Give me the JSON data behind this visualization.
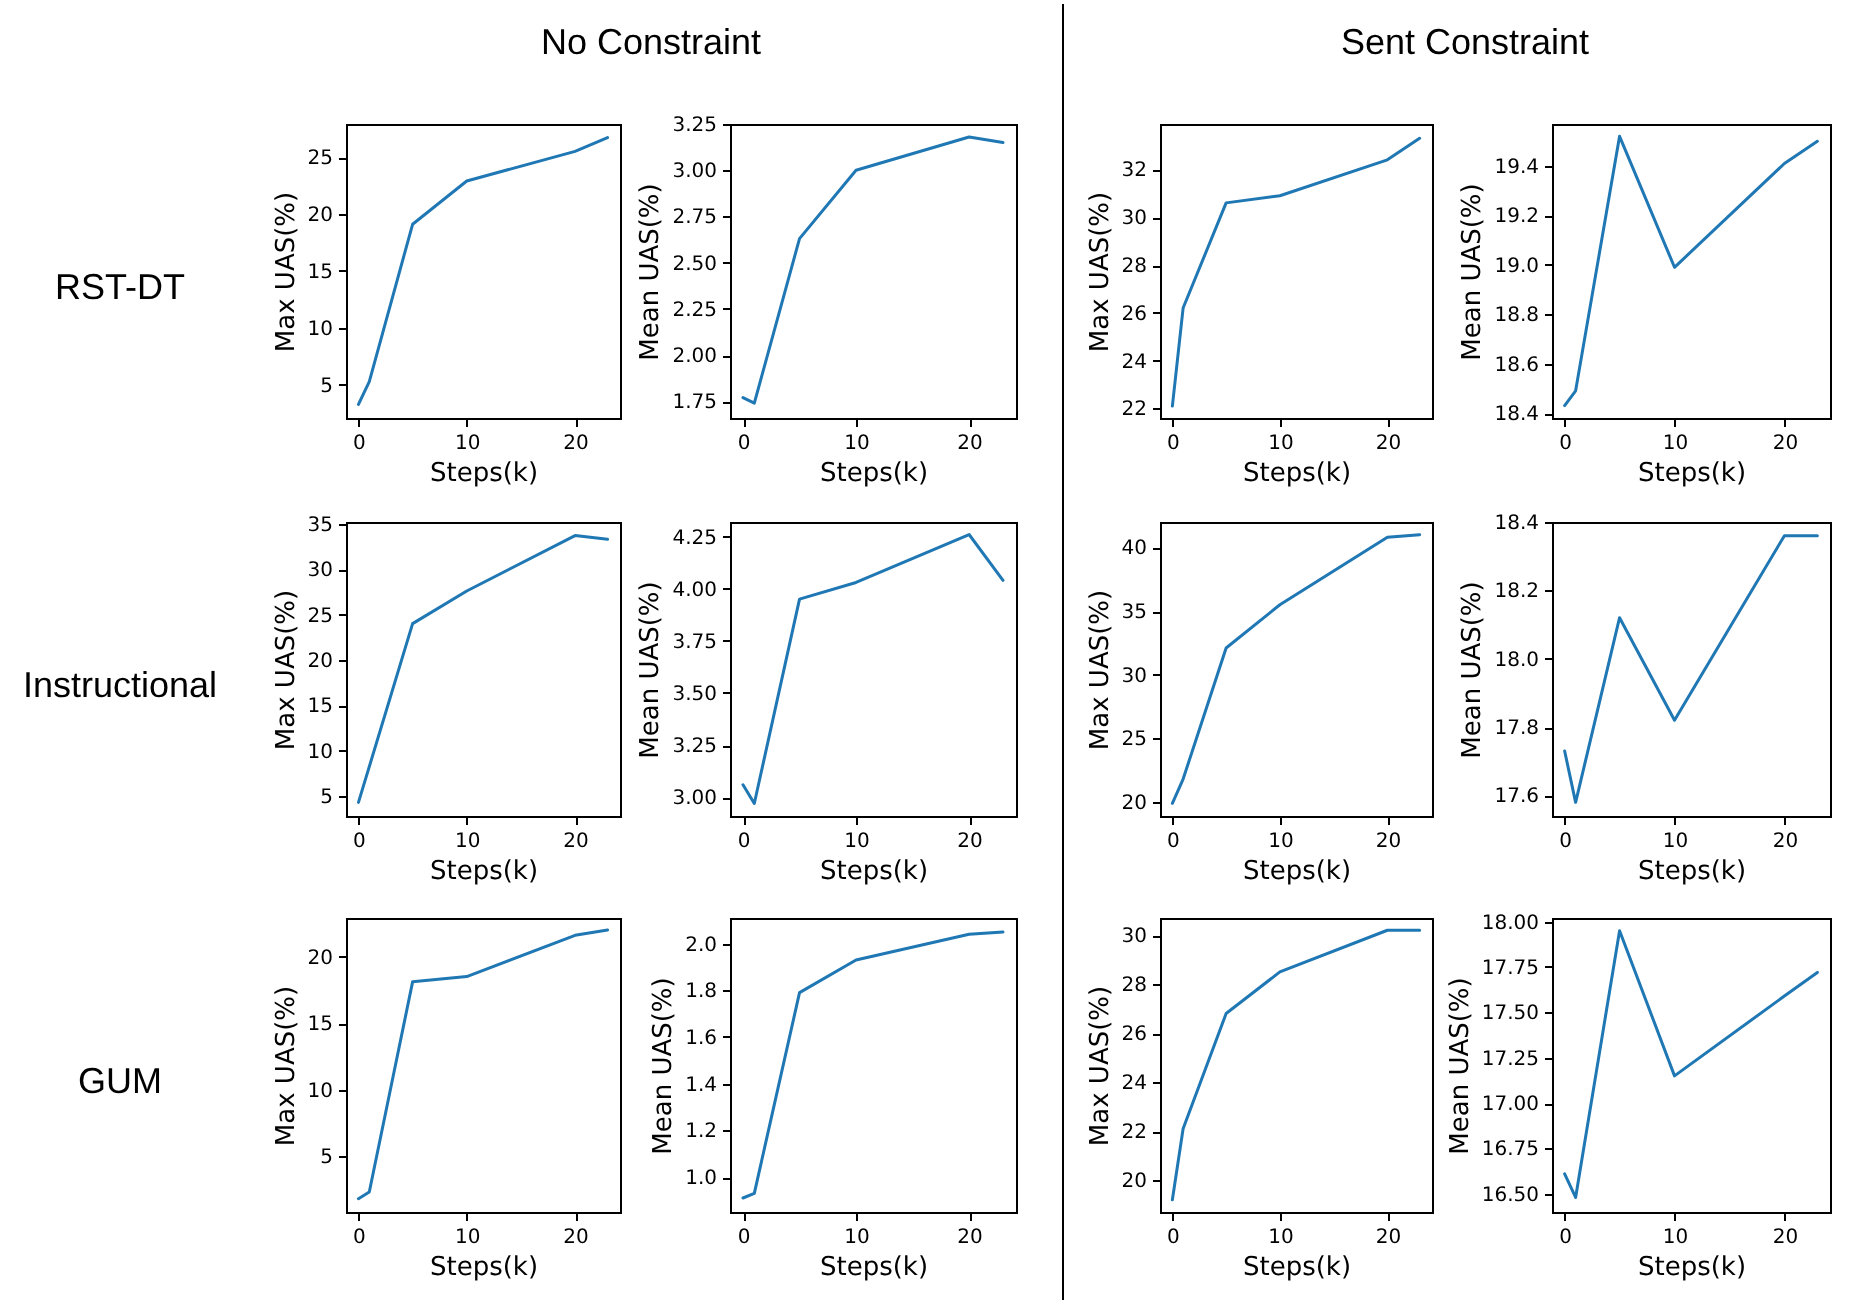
{
  "chart_data": [
    {
      "type": "line",
      "title": "No Constraint",
      "annotations": [
        "RST-DT"
      ],
      "xlabel": "Steps(k)",
      "ylabel": "Max UAS(%)",
      "x": [
        0,
        1,
        5,
        10,
        20,
        23
      ],
      "xlim": [
        -1.15,
        24.15
      ],
      "xticks": [
        0,
        10,
        20
      ],
      "ylim": [
        2.1,
        27.9
      ],
      "yticks": [
        5,
        10,
        15,
        20,
        25
      ],
      "series": [
        {
          "color": "#1f77b4",
          "values": [
            3.3,
            5.3,
            19.1,
            22.9,
            25.5,
            26.7
          ]
        }
      ]
    },
    {
      "type": "line",
      "xlabel": "Steps(k)",
      "ylabel": "Mean UAS(%)",
      "x": [
        0,
        1,
        5,
        10,
        20,
        23
      ],
      "xlim": [
        -1.15,
        24.15
      ],
      "xticks": [
        0,
        10,
        20
      ],
      "ylim": [
        1.66,
        3.25
      ],
      "yticks": [
        1.75,
        {
          "value": 2,
          "label": "2.00"
        },
        2.25,
        {
          "value": 2.5,
          "label": "2.50"
        },
        2.75,
        {
          "value": 3,
          "label": "3.00"
        },
        3.25
      ],
      "series": [
        {
          "color": "#1f77b4",
          "values": [
            1.77,
            1.74,
            2.63,
            3.0,
            3.18,
            3.15
          ]
        }
      ]
    },
    {
      "type": "line",
      "title": "Sent Constraint",
      "xlabel": "Steps(k)",
      "ylabel": "Max UAS(%)",
      "x": [
        0,
        1,
        5,
        10,
        20,
        23
      ],
      "xlim": [
        -1.15,
        24.15
      ],
      "xticks": [
        0,
        10,
        20
      ],
      "ylim": [
        21.6,
        33.9
      ],
      "yticks": [
        22,
        24,
        26,
        28,
        30,
        32
      ],
      "series": [
        {
          "color": "#1f77b4",
          "values": [
            22.1,
            26.2,
            30.6,
            30.9,
            32.4,
            33.3
          ]
        }
      ]
    },
    {
      "type": "line",
      "xlabel": "Steps(k)",
      "ylabel": "Mean UAS(%)",
      "x": [
        0,
        1,
        5,
        10,
        20,
        23
      ],
      "xlim": [
        -1.15,
        24.15
      ],
      "xticks": [
        0,
        10,
        20
      ],
      "ylim": [
        18.38,
        19.57
      ],
      "yticks": [
        18.4,
        18.6,
        18.8,
        {
          "value": 19,
          "label": "19.0"
        },
        19.2,
        19.4
      ],
      "series": [
        {
          "color": "#1f77b4",
          "values": [
            18.43,
            18.49,
            19.52,
            18.99,
            19.41,
            19.5
          ]
        }
      ]
    },
    {
      "type": "line",
      "annotations": [
        "Instructional"
      ],
      "xlabel": "Steps(k)",
      "ylabel": "Max UAS(%)",
      "x": [
        0,
        5,
        10,
        20,
        23
      ],
      "xlim": [
        -1.15,
        24.15
      ],
      "xticks": [
        0,
        10,
        20
      ],
      "ylim": [
        2.8,
        35.2
      ],
      "yticks": [
        5,
        10,
        15,
        20,
        25,
        30,
        35
      ],
      "series": [
        {
          "color": "#1f77b4",
          "values": [
            4.3,
            24.0,
            27.6,
            33.7,
            33.3
          ]
        }
      ]
    },
    {
      "type": "line",
      "xlabel": "Steps(k)",
      "ylabel": "Mean UAS(%)",
      "x": [
        0,
        1,
        5,
        10,
        20,
        23
      ],
      "xlim": [
        -1.15,
        24.15
      ],
      "xticks": [
        0,
        10,
        20
      ],
      "ylim": [
        2.91,
        4.32
      ],
      "yticks": [
        {
          "value": 3,
          "label": "3.00"
        },
        3.25,
        {
          "value": 3.5,
          "label": "3.50"
        },
        3.75,
        {
          "value": 4,
          "label": "4.00"
        },
        4.25
      ],
      "series": [
        {
          "color": "#1f77b4",
          "values": [
            3.06,
            2.97,
            3.95,
            4.03,
            4.26,
            4.04
          ]
        }
      ]
    },
    {
      "type": "line",
      "xlabel": "Steps(k)",
      "ylabel": "Max UAS(%)",
      "x": [
        0,
        1,
        5,
        10,
        20,
        23
      ],
      "xlim": [
        -1.15,
        24.15
      ],
      "xticks": [
        0,
        10,
        20
      ],
      "ylim": [
        18.9,
        42.0
      ],
      "yticks": [
        20,
        25,
        30,
        35,
        40
      ],
      "series": [
        {
          "color": "#1f77b4",
          "values": [
            19.9,
            21.8,
            32.1,
            35.5,
            40.8,
            41.0
          ]
        }
      ]
    },
    {
      "type": "line",
      "xlabel": "Steps(k)",
      "ylabel": "Mean UAS(%)",
      "x": [
        0,
        1,
        5,
        10,
        20,
        23
      ],
      "xlim": [
        -1.15,
        24.15
      ],
      "xticks": [
        0,
        10,
        20
      ],
      "ylim": [
        17.54,
        18.4
      ],
      "yticks": [
        17.6,
        17.8,
        {
          "value": 18,
          "label": "18.0"
        },
        18.2,
        18.4
      ],
      "series": [
        {
          "color": "#1f77b4",
          "values": [
            17.73,
            17.58,
            18.12,
            17.82,
            18.36,
            18.36
          ]
        }
      ]
    },
    {
      "type": "line",
      "annotations": [
        "GUM"
      ],
      "xlabel": "Steps(k)",
      "ylabel": "Max UAS(%)",
      "x": [
        0,
        1,
        5,
        10,
        20,
        23
      ],
      "xlim": [
        -1.15,
        24.15
      ],
      "xticks": [
        0,
        10,
        20
      ],
      "ylim": [
        0.8,
        22.9
      ],
      "yticks": [
        5,
        10,
        15,
        20
      ],
      "series": [
        {
          "color": "#1f77b4",
          "values": [
            1.8,
            2.3,
            18.1,
            18.5,
            21.6,
            22.0
          ]
        }
      ]
    },
    {
      "type": "line",
      "xlabel": "Steps(k)",
      "ylabel": "Mean UAS(%)",
      "x": [
        0,
        1,
        5,
        10,
        20,
        23
      ],
      "xlim": [
        -1.15,
        24.15
      ],
      "xticks": [
        0,
        10,
        20
      ],
      "ylim": [
        0.85,
        2.11
      ],
      "yticks": [
        {
          "value": 1,
          "label": "1.0"
        },
        1.2,
        1.4,
        1.6,
        1.8,
        {
          "value": 2,
          "label": "2.0"
        }
      ],
      "series": [
        {
          "color": "#1f77b4",
          "values": [
            0.91,
            0.93,
            1.79,
            1.93,
            2.04,
            2.05
          ]
        }
      ]
    },
    {
      "type": "line",
      "xlabel": "Steps(k)",
      "ylabel": "Max UAS(%)",
      "x": [
        0,
        1,
        5,
        10,
        20,
        23
      ],
      "xlim": [
        -1.15,
        24.15
      ],
      "xticks": [
        0,
        10,
        20
      ],
      "ylim": [
        18.7,
        30.7
      ],
      "yticks": [
        20,
        22,
        24,
        26,
        28,
        30
      ],
      "series": [
        {
          "color": "#1f77b4",
          "values": [
            19.2,
            22.1,
            26.8,
            28.5,
            30.2,
            30.2
          ]
        }
      ]
    },
    {
      "type": "line",
      "xlabel": "Steps(k)",
      "ylabel": "Mean UAS(%)",
      "x": [
        0,
        1,
        5,
        10,
        20,
        23
      ],
      "xlim": [
        -1.15,
        24.15
      ],
      "xticks": [
        0,
        10,
        20
      ],
      "ylim": [
        16.4,
        18.02
      ],
      "yticks": [
        {
          "value": 16.5,
          "label": "16.50"
        },
        16.75,
        {
          "value": 17,
          "label": "17.00"
        },
        17.25,
        {
          "value": 17.5,
          "label": "17.50"
        },
        17.75,
        {
          "value": 18,
          "label": "18.00"
        }
      ],
      "series": [
        {
          "color": "#1f77b4",
          "values": [
            16.61,
            16.48,
            17.95,
            17.15,
            17.59,
            17.72
          ]
        }
      ]
    }
  ]
}
